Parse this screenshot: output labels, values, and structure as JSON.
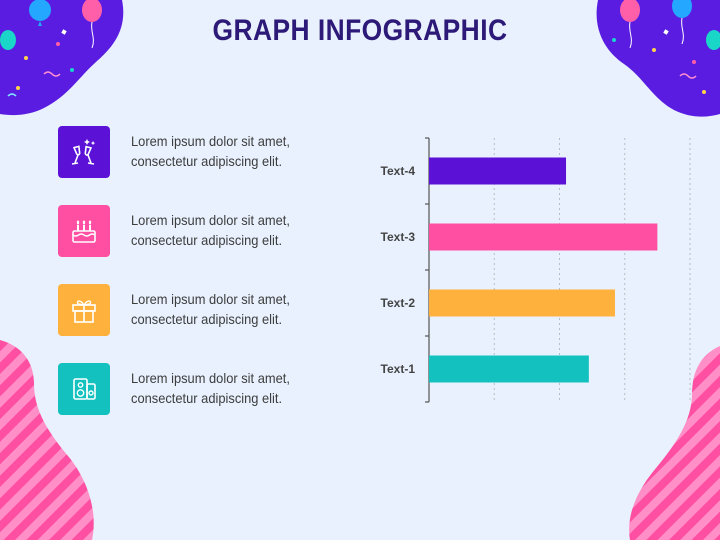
{
  "title": "GRAPH INFOGRAPHIC",
  "items": [
    {
      "icon": "champagne-icon",
      "color": "#5b12d6",
      "line1": "Lorem ipsum dolor sit amet,",
      "line2": "consectetur adipiscing elit."
    },
    {
      "icon": "birthday-cake-icon",
      "color": "#ff4fa3",
      "line1": "Lorem ipsum dolor sit amet,",
      "line2": "consectetur adipiscing elit."
    },
    {
      "icon": "gift-icon",
      "color": "#ffb13d",
      "line1": "Lorem ipsum dolor sit amet,",
      "line2": "consectetur adipiscing elit."
    },
    {
      "icon": "speaker-icon",
      "color": "#13c2bf",
      "line1": "Lorem ipsum dolor sit amet,",
      "line2": "consectetur adipiscing elit."
    }
  ],
  "chart_data": {
    "type": "bar",
    "orientation": "horizontal",
    "categories": [
      "Text-4",
      "Text-3",
      "Text-2",
      "Text-1"
    ],
    "values": [
      2.1,
      3.5,
      2.85,
      2.45
    ],
    "colors": [
      "#5b12d6",
      "#ff4fa3",
      "#ffb13d",
      "#13c2bf"
    ],
    "xlim": [
      0,
      4
    ],
    "grid": true,
    "x_tick_labels_visible": false
  }
}
